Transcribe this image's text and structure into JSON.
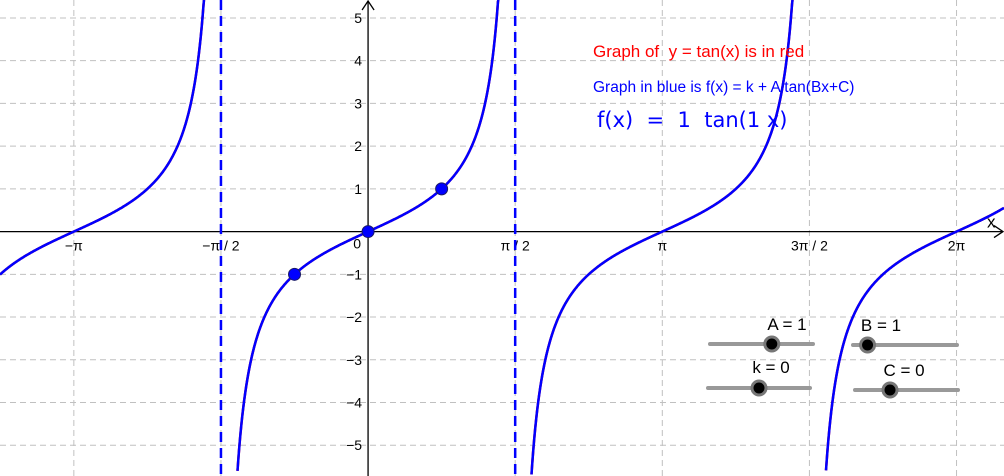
{
  "chart_data": {
    "type": "line",
    "xlabel": "x",
    "xlim": [
      -3.93,
      6.79
    ],
    "ylim": [
      -5.72,
      5.42
    ],
    "grid": true,
    "x_ticks": [
      {
        "value": -3.14159,
        "label": "−π"
      },
      {
        "value": -1.5708,
        "label": "−π / 2"
      },
      {
        "value": 1.5708,
        "label": "π / 2"
      },
      {
        "value": 3.14159,
        "label": "π"
      },
      {
        "value": 4.71239,
        "label": "3π / 2"
      },
      {
        "value": 6.28319,
        "label": "2π"
      }
    ],
    "origin_label": "0",
    "y_ticks": [
      -5,
      -4,
      -3,
      -2,
      -1,
      1,
      2,
      3,
      4,
      5
    ],
    "series": [
      {
        "expr": "tan(x)",
        "color": "#ff0000"
      },
      {
        "expr": "k + A tan(Bx+C)",
        "color": "#0000ff"
      }
    ],
    "asymptotes": [
      -1.5708,
      1.5708
    ],
    "points": [
      [
        -0.7854,
        -1
      ],
      [
        0,
        0
      ],
      [
        0.7854,
        1
      ]
    ],
    "annotations": {
      "red_text": "Graph of  y = tan(x) is in red",
      "blue_text": "Graph in blue is f(x) = k + A tan(Bx+C)",
      "formula": "f(x)  =  1  tan(1 x)"
    },
    "sliders": [
      {
        "name": "A",
        "label": "A = 1",
        "value": 1,
        "fraction": 0.6
      },
      {
        "name": "B",
        "label": "B = 1",
        "value": 1,
        "fraction": 0.14
      },
      {
        "name": "k",
        "label": "k = 0",
        "value": 0,
        "fraction": 0.5
      },
      {
        "name": "C",
        "label": "C = 0",
        "value": 0,
        "fraction": 0.34
      }
    ],
    "colors": {
      "red": "#ff0000",
      "blue": "#0000ff",
      "grid": "#c0c0c0",
      "slider": "#999999"
    }
  }
}
